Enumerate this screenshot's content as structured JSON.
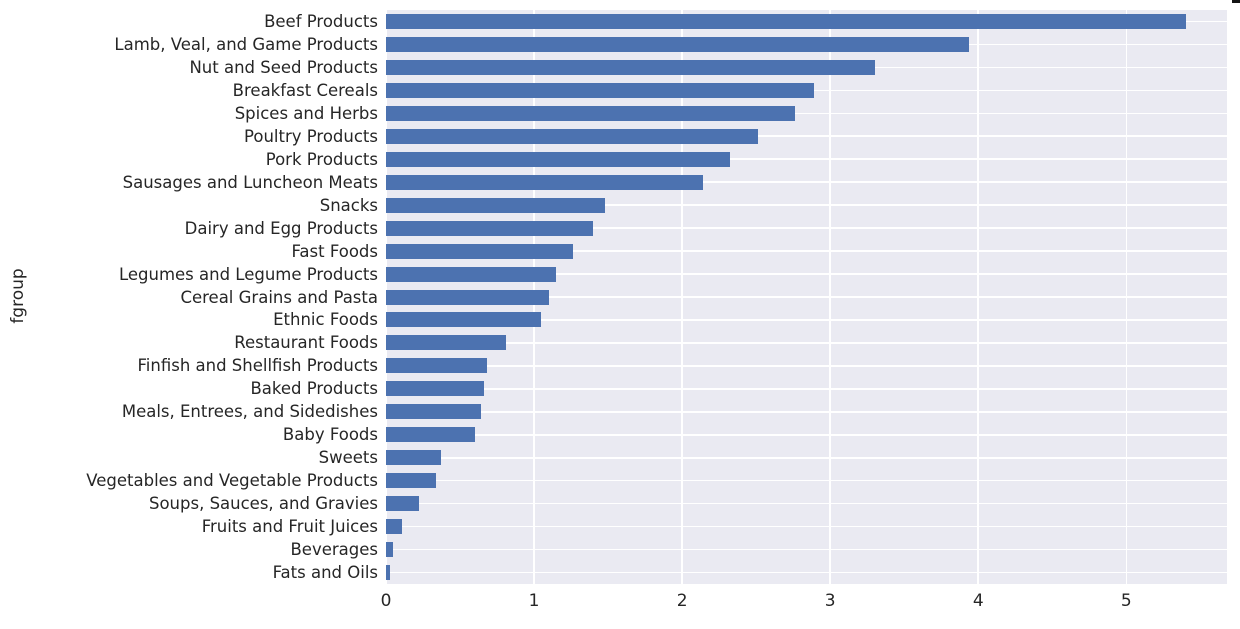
{
  "chart_data": {
    "type": "bar",
    "orientation": "horizontal",
    "title": "",
    "xlabel": "",
    "ylabel": "fgroup",
    "categories": [
      "Beef Products",
      "Lamb, Veal, and Game Products",
      "Nut and Seed Products",
      "Breakfast Cereals",
      "Spices and Herbs",
      "Poultry Products",
      "Pork Products",
      "Sausages and Luncheon Meats",
      "Snacks",
      "Dairy and Egg Products",
      "Fast Foods",
      "Legumes and Legume Products",
      "Cereal Grains and Pasta",
      "Ethnic Foods",
      "Restaurant Foods",
      "Finfish and Shellfish Products",
      "Baked Products",
      "Meals, Entrees, and Sidedishes",
      "Baby Foods",
      "Sweets",
      "Vegetables and Vegetable Products",
      "Soups, Sauces, and Gravies",
      "Fruits and Fruit Juices",
      "Beverages",
      "Fats and Oils"
    ],
    "values": [
      5.4,
      3.94,
      3.3,
      2.89,
      2.76,
      2.51,
      2.32,
      2.14,
      1.48,
      1.4,
      1.26,
      1.15,
      1.1,
      1.05,
      0.81,
      0.68,
      0.66,
      0.64,
      0.6,
      0.37,
      0.34,
      0.22,
      0.11,
      0.05,
      0.03
    ],
    "xticks": [
      "0",
      "1",
      "2",
      "3",
      "4",
      "5"
    ],
    "xlim": [
      0,
      5.68
    ],
    "grid": true,
    "legend": false,
    "colors": {
      "bar": "#4c72b0",
      "plot_background": "#eaeaf2",
      "gridline": "#ffffff",
      "text": "#262626",
      "figure_background": "#ffffff"
    }
  }
}
